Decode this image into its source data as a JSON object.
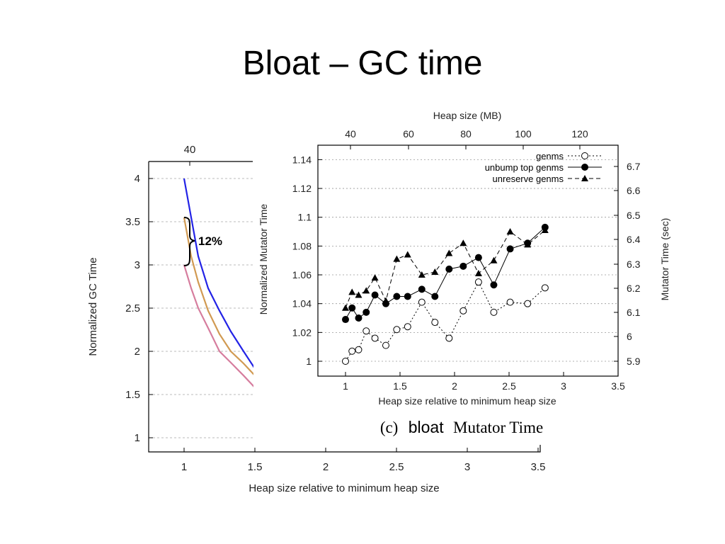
{
  "slide": {
    "title": "Bloat – GC time"
  },
  "chart_data": [
    {
      "type": "line",
      "ylabel": "Normalized GC Time",
      "xlabel": "Heap size relative to minimum heap size",
      "xlim": [
        0.75,
        3.5
      ],
      "ylim": [
        0.75,
        4.2
      ],
      "x_ticks": [
        "1",
        "1.5",
        "2",
        "2.5",
        "3",
        "3.5"
      ],
      "y_ticks": [
        "1",
        "1.5",
        "2",
        "2.5",
        "3",
        "3.5",
        "4"
      ],
      "top_ticks": [
        "40"
      ],
      "series": [
        {
          "color": "#2323e6",
          "points": [
            [
              1.0,
              4.0
            ],
            [
              1.05,
              3.55
            ],
            [
              1.1,
              3.1
            ],
            [
              1.17,
              2.73
            ],
            [
              1.25,
              2.47
            ],
            [
              1.33,
              2.23
            ],
            [
              1.42,
              2.0
            ],
            [
              1.5,
              1.8
            ]
          ]
        },
        {
          "color": "#d19a52",
          "points": [
            [
              1.0,
              3.55
            ],
            [
              1.05,
              3.1
            ],
            [
              1.1,
              2.8
            ],
            [
              1.17,
              2.47
            ],
            [
              1.25,
              2.2
            ],
            [
              1.33,
              2.0
            ],
            [
              1.42,
              1.86
            ],
            [
              1.5,
              1.72
            ]
          ]
        },
        {
          "color": "#d67d9e",
          "points": [
            [
              1.0,
              3.0
            ],
            [
              1.05,
              2.73
            ],
            [
              1.1,
              2.5
            ],
            [
              1.17,
              2.27
            ],
            [
              1.25,
              2.0
            ],
            [
              1.33,
              1.87
            ],
            [
              1.42,
              1.72
            ],
            [
              1.5,
              1.58
            ]
          ]
        }
      ],
      "annotation": {
        "text": "12%",
        "y_from": 3.0,
        "y_to": 3.55
      }
    },
    {
      "type": "line",
      "caption_prefix": "(c)",
      "caption_name": "bloat",
      "caption_suffix": "Mutator Time",
      "xlabel": "Heap size relative to minimum heap size",
      "ylabel": "Normalized Mutator Time",
      "y2label": "Mutator Time (sec)",
      "top_xlabel": "Heap size (MB)",
      "xlim": [
        0.75,
        3.5
      ],
      "ylim": [
        0.99,
        1.15
      ],
      "x_ticks": [
        "1",
        "1.5",
        "2",
        "2.5",
        "3",
        "3.5"
      ],
      "y_ticks": [
        "1",
        "1.02",
        "1.04",
        "1.06",
        "1.08",
        "1.1",
        "1.12",
        "1.14"
      ],
      "y2_ticks": [
        "5.9",
        "6",
        "6.1",
        "6.2",
        "6.3",
        "6.4",
        "6.5",
        "6.6",
        "6.7"
      ],
      "top_ticks": [
        "40",
        "60",
        "80",
        "100",
        "120"
      ],
      "grid": true,
      "legend": "top-right",
      "x": [
        1.0,
        1.06,
        1.12,
        1.19,
        1.27,
        1.37,
        1.47,
        1.57,
        1.7,
        1.82,
        1.95,
        2.08,
        2.22,
        2.36,
        2.51,
        2.67,
        2.83,
        3.0
      ],
      "series": [
        {
          "name": "genms",
          "marker": "open-circle",
          "dash": "2,3",
          "values": [
            1.0,
            1.007,
            1.008,
            1.021,
            1.016,
            1.011,
            1.022,
            1.024,
            1.041,
            1.027,
            1.016,
            1.035,
            1.055,
            1.034,
            1.041,
            1.04,
            1.051,
            null
          ]
        },
        {
          "name": "unbump top genms",
          "marker": "filled-circle",
          "dash": "",
          "values": [
            1.029,
            1.037,
            1.03,
            1.034,
            1.046,
            1.04,
            1.045,
            1.045,
            1.05,
            1.045,
            1.064,
            1.066,
            1.072,
            1.053,
            1.078,
            1.082,
            1.093,
            null
          ]
        },
        {
          "name": "unreserve genms",
          "marker": "filled-triangle",
          "dash": "6,4",
          "values": [
            1.037,
            1.048,
            1.046,
            1.049,
            1.058,
            1.042,
            1.071,
            1.074,
            1.06,
            1.062,
            1.075,
            1.082,
            1.061,
            1.07,
            1.09,
            1.081,
            1.091,
            null
          ]
        }
      ]
    }
  ]
}
